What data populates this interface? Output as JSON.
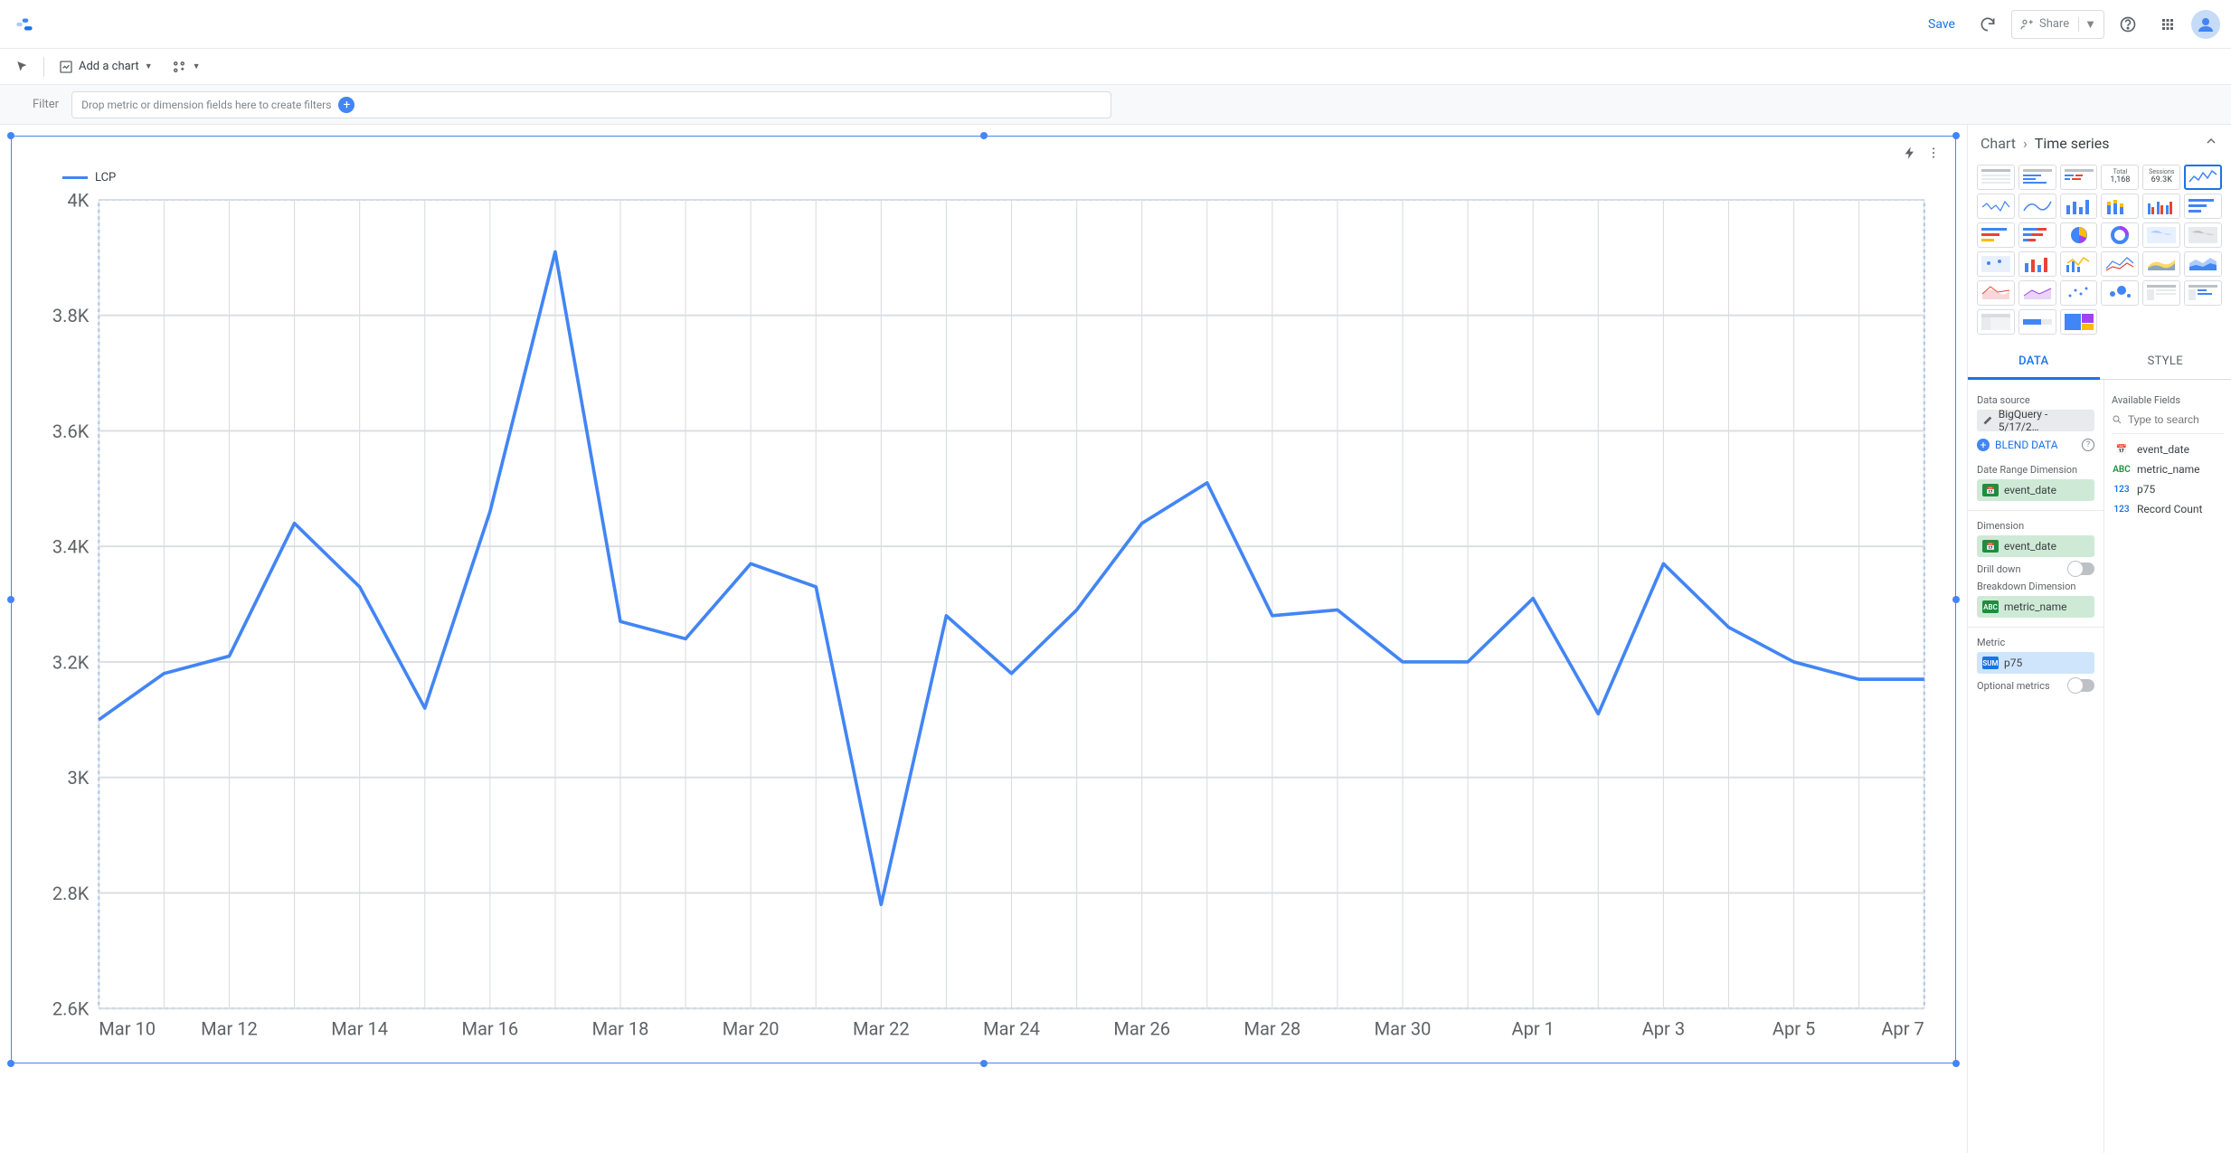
{
  "topbar": {
    "save_label": "Save",
    "share_label": "Share"
  },
  "toolbar": {
    "add_chart_label": "Add a chart"
  },
  "filterbar": {
    "label": "Filter",
    "placeholder": "Drop metric or dimension fields here to create filters"
  },
  "chart": {
    "type": "line",
    "legend_label": "LCP",
    "line_color": "#4285f4",
    "line_width": 2,
    "grid_color": "#dadde1",
    "border_dash_color": "#4285f4",
    "axis_label_color": "#5f6368",
    "axis_label_fontsize": 11,
    "ylim": [
      2600,
      4000
    ],
    "ytick_step": 200,
    "yticks": [
      "4K",
      "3.8K",
      "3.6K",
      "3.4K",
      "3.2K",
      "3K",
      "2.8K",
      "2.6K"
    ],
    "xticks": [
      "Mar 10",
      "Mar 12",
      "Mar 14",
      "Mar 16",
      "Mar 18",
      "Mar 20",
      "Mar 22",
      "Mar 24",
      "Mar 26",
      "Mar 28",
      "Mar 30",
      "Apr 1",
      "Apr 3",
      "Apr 5",
      "Apr 7"
    ],
    "x_dates": [
      "Mar 10",
      "Mar 11",
      "Mar 12",
      "Mar 13",
      "Mar 14",
      "Mar 15",
      "Mar 16",
      "Mar 17",
      "Mar 18",
      "Mar 19",
      "Mar 20",
      "Mar 21",
      "Mar 22",
      "Mar 23",
      "Mar 24",
      "Mar 25",
      "Mar 26",
      "Mar 27",
      "Mar 28",
      "Mar 29",
      "Mar 30",
      "Mar 31",
      "Apr 1",
      "Apr 2",
      "Apr 3",
      "Apr 4",
      "Apr 5",
      "Apr 6",
      "Apr 7"
    ],
    "values": [
      3100,
      3180,
      3210,
      3440,
      3330,
      3120,
      3460,
      3910,
      3270,
      3240,
      3370,
      3330,
      2780,
      3280,
      3180,
      3290,
      3440,
      3510,
      3280,
      3290,
      3200,
      3200,
      3310,
      3110,
      3370,
      3260,
      3200,
      3170,
      3170
    ]
  },
  "panel": {
    "crumb_chart": "Chart",
    "crumb_current": "Time series",
    "tabs": {
      "data": "DATA",
      "style": "STYLE"
    },
    "gallery": {
      "scorecard_total_label": "Total",
      "scorecard_total_value": "1,168",
      "scorecard_sessions_label": "Sessions",
      "scorecard_sessions_value": "69.3K"
    },
    "sections": {
      "data_source": "Data source",
      "data_source_value": "BigQuery - 5/17/2…",
      "blend": "BLEND DATA",
      "date_range_dimension": "Date Range Dimension",
      "dimension": "Dimension",
      "drill_down": "Drill down",
      "breakdown_dimension": "Breakdown Dimension",
      "metric": "Metric",
      "optional_metrics": "Optional metrics",
      "available_fields": "Available Fields",
      "search_placeholder": "Type to search"
    },
    "chips": {
      "event_date": "event_date",
      "metric_name": "metric_name",
      "p75": "p75",
      "sum": "SUM",
      "abc": "ABC",
      "cal": "📅"
    },
    "fields": [
      {
        "type": "date",
        "icon": "📅",
        "name": "event_date"
      },
      {
        "type": "abc",
        "icon": "ABC",
        "name": "metric_name"
      },
      {
        "type": "123",
        "icon": "123",
        "name": "p75"
      },
      {
        "type": "123",
        "icon": "123",
        "name": "Record Count"
      }
    ]
  }
}
